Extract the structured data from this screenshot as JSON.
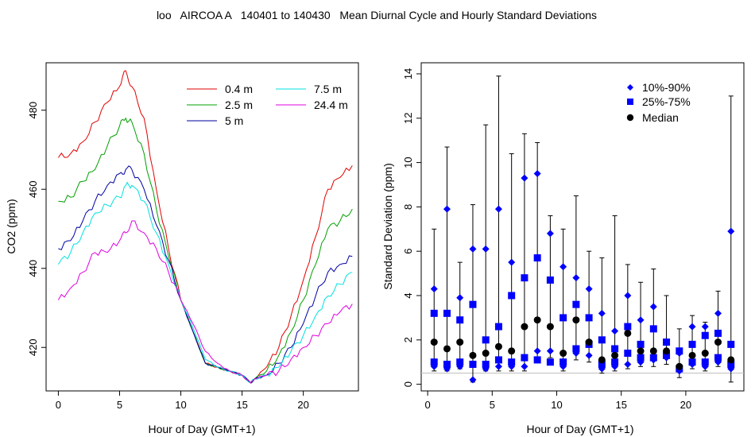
{
  "title": "loo   AIRCOA A   140401 to 140430   Mean Diurnal Cycle and Hourly Standard Deviations",
  "chart_data": [
    {
      "type": "line",
      "xlabel": "Hour of Day (GMT+1)",
      "ylabel": "CO2 (ppm)",
      "xlim": [
        -1,
        24.5
      ],
      "ylim": [
        409,
        492
      ],
      "xticks": [
        "0",
        "5",
        "10",
        "15",
        "20"
      ],
      "xtick_values": [
        0,
        5,
        10,
        15,
        20
      ],
      "yticks": [
        "420",
        "440",
        "460",
        "480"
      ],
      "ytick_values": [
        420,
        440,
        460,
        480
      ],
      "legend_position": "top-right",
      "hours": [
        0,
        1,
        2,
        3,
        4,
        5,
        5.5,
        6,
        7,
        8,
        9,
        10,
        11,
        12,
        13,
        14,
        15,
        15.7,
        16,
        17,
        18,
        19,
        20,
        21,
        22,
        23,
        24
      ],
      "series": [
        {
          "name": "0.4 m",
          "color": "#e00000",
          "values": [
            468,
            469,
            472,
            477,
            482,
            486,
            490,
            486,
            478,
            460,
            445,
            432,
            424,
            416,
            415,
            414,
            413,
            411,
            412,
            415,
            420,
            428,
            437,
            448,
            460,
            463,
            466
          ]
        },
        {
          "name": "2.5 m",
          "color": "#00a000",
          "values": [
            457,
            458,
            462,
            465,
            471,
            476,
            478,
            477,
            469,
            455,
            443,
            432,
            424,
            416,
            415,
            414,
            413,
            411,
            412,
            414,
            418,
            424,
            432,
            441,
            450,
            452,
            455
          ]
        },
        {
          "name": "5 m",
          "color": "#0000a0",
          "values": [
            445,
            447,
            452,
            457,
            461,
            464,
            465,
            465,
            460,
            451,
            442,
            432,
            424,
            416,
            415,
            414,
            413,
            411,
            412,
            413,
            416,
            420,
            426,
            433,
            439,
            441,
            443
          ]
        },
        {
          "name": "7.5 m",
          "color": "#00e0e0",
          "values": [
            441,
            444,
            449,
            454,
            456,
            458,
            461,
            461,
            457,
            449,
            441,
            432,
            425,
            417,
            415,
            414,
            413,
            411,
            412,
            413,
            415,
            419,
            423,
            428,
            433,
            436,
            439
          ]
        },
        {
          "name": "24.4 m",
          "color": "#e000e0",
          "values": [
            432,
            435,
            439,
            444,
            444,
            447,
            449,
            452,
            449,
            445,
            439,
            432,
            426,
            419,
            416,
            414,
            413,
            411,
            412,
            413,
            414,
            417,
            420,
            423,
            426,
            429,
            431
          ]
        }
      ]
    },
    {
      "type": "scatter",
      "xlabel": "Hour of Day (GMT+1)",
      "ylabel": "Standard Deviation (ppm)",
      "xlim": [
        -0.5,
        24.5
      ],
      "ylim": [
        -0.3,
        14.5
      ],
      "xticks": [
        "0",
        "5",
        "10",
        "15",
        "20"
      ],
      "xtick_values": [
        0,
        5,
        10,
        15,
        20
      ],
      "yticks": [
        "0",
        "2",
        "4",
        "6",
        "8",
        "10",
        "12",
        "14"
      ],
      "ytick_values": [
        0,
        2,
        4,
        6,
        8,
        10,
        12,
        14
      ],
      "reference_line": 0.5,
      "legend_position": "top-right",
      "legend": [
        "10%-90%",
        "25%-75%",
        "Median"
      ],
      "hours": [
        0.5,
        1.5,
        2.5,
        3.5,
        4.5,
        5.5,
        6.5,
        7.5,
        8.5,
        9.5,
        10.5,
        11.5,
        12.5,
        13.5,
        14.5,
        15.5,
        16.5,
        17.5,
        18.5,
        19.5,
        20.5,
        21.5,
        22.5,
        23.5
      ],
      "p10": [
        0.8,
        0.7,
        0.8,
        0.2,
        0.7,
        0.8,
        0.8,
        0.8,
        1.5,
        1.5,
        0.8,
        1.4,
        1.3,
        0.7,
        0.8,
        0.9,
        1.0,
        1.1,
        1.2,
        0.6,
        0.9,
        0.8,
        1.0,
        0.7
      ],
      "p25": [
        1.0,
        0.9,
        1.0,
        0.9,
        0.9,
        1.1,
        1.0,
        1.2,
        1.1,
        1.0,
        1.0,
        1.6,
        1.8,
        0.9,
        1.0,
        1.4,
        1.2,
        1.2,
        1.3,
        0.7,
        1.0,
        1.0,
        1.2,
        0.9
      ],
      "median": [
        1.9,
        1.6,
        1.9,
        1.3,
        1.4,
        1.7,
        1.5,
        2.6,
        2.9,
        2.6,
        1.4,
        2.9,
        1.9,
        1.1,
        1.3,
        2.3,
        1.5,
        1.5,
        1.5,
        0.8,
        1.3,
        1.4,
        1.9,
        1.1
      ],
      "p75": [
        3.2,
        3.2,
        2.9,
        3.6,
        2.0,
        2.6,
        4.0,
        4.8,
        5.7,
        4.7,
        3.0,
        3.6,
        3.0,
        2.0,
        1.6,
        2.6,
        1.8,
        2.5,
        1.9,
        1.5,
        1.8,
        2.2,
        2.3,
        1.8
      ],
      "p90": [
        4.3,
        7.9,
        3.9,
        6.1,
        6.1,
        7.9,
        5.5,
        9.3,
        9.5,
        6.8,
        5.3,
        4.8,
        4.3,
        3.2,
        2.4,
        4.0,
        2.9,
        3.5,
        1.5,
        1.4,
        2.6,
        2.6,
        3.2,
        6.9
      ],
      "whisker_max": [
        7.0,
        10.7,
        5.5,
        8.1,
        11.7,
        13.9,
        10.4,
        11.3,
        10.9,
        7.6,
        7.0,
        8.5,
        6.0,
        5.7,
        7.6,
        5.4,
        4.6,
        5.2,
        4.0,
        2.5,
        3.1,
        2.8,
        4.2,
        13.0
      ],
      "whisker_min": [
        0.6,
        0.6,
        0.7,
        0.1,
        0.6,
        0.6,
        0.6,
        0.6,
        1.2,
        1.2,
        0.6,
        1.1,
        1.0,
        0.5,
        0.6,
        0.7,
        0.8,
        0.8,
        0.9,
        0.3,
        0.7,
        0.6,
        0.8,
        0.1
      ]
    }
  ]
}
